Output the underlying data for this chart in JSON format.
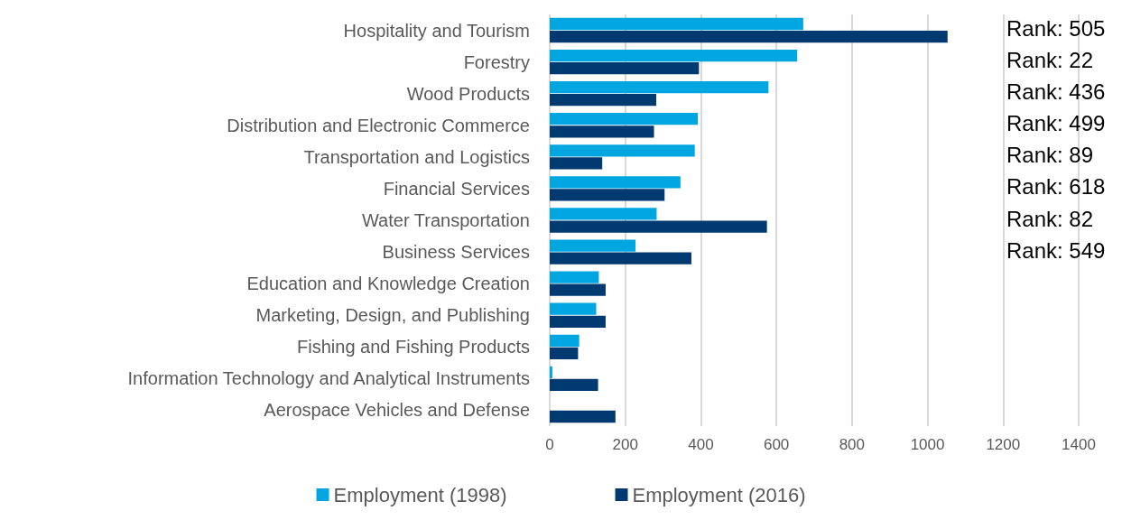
{
  "chart_data": {
    "type": "bar",
    "orientation": "horizontal",
    "categories": [
      "Hospitality and Tourism",
      "Forestry",
      "Wood Products",
      "Distribution and Electronic Commerce",
      "Transportation and Logistics",
      "Financial Services",
      "Water Transportation",
      "Business Services",
      "Education and Knowledge Creation",
      "Marketing, Design, and Publishing",
      "Fishing and Fishing Products",
      "Information Technology and Analytical Instruments",
      "Aerospace Vehicles and Defense"
    ],
    "series": [
      {
        "name": "Employment (1998)",
        "color": "#00a6e0",
        "values": [
          671,
          655,
          579,
          392,
          384,
          346,
          283,
          227,
          130,
          123,
          78,
          7,
          null
        ]
      },
      {
        "name": "Employment (2016)",
        "color": "#003a70",
        "values": [
          1053,
          395,
          282,
          276,
          139,
          304,
          575,
          375,
          148,
          148,
          75,
          128,
          174
        ]
      }
    ],
    "xlim": [
      0,
      1400
    ],
    "xticks": [
      0,
      200,
      400,
      600,
      800,
      1000,
      1200,
      1400
    ],
    "grid": "x",
    "legend": "bottom",
    "annotations": [
      "Rank: 505",
      "Rank: 22",
      "Rank: 436",
      "Rank: 499",
      "Rank: 89",
      "Rank: 618",
      "Rank: 82",
      "Rank: 549"
    ]
  }
}
